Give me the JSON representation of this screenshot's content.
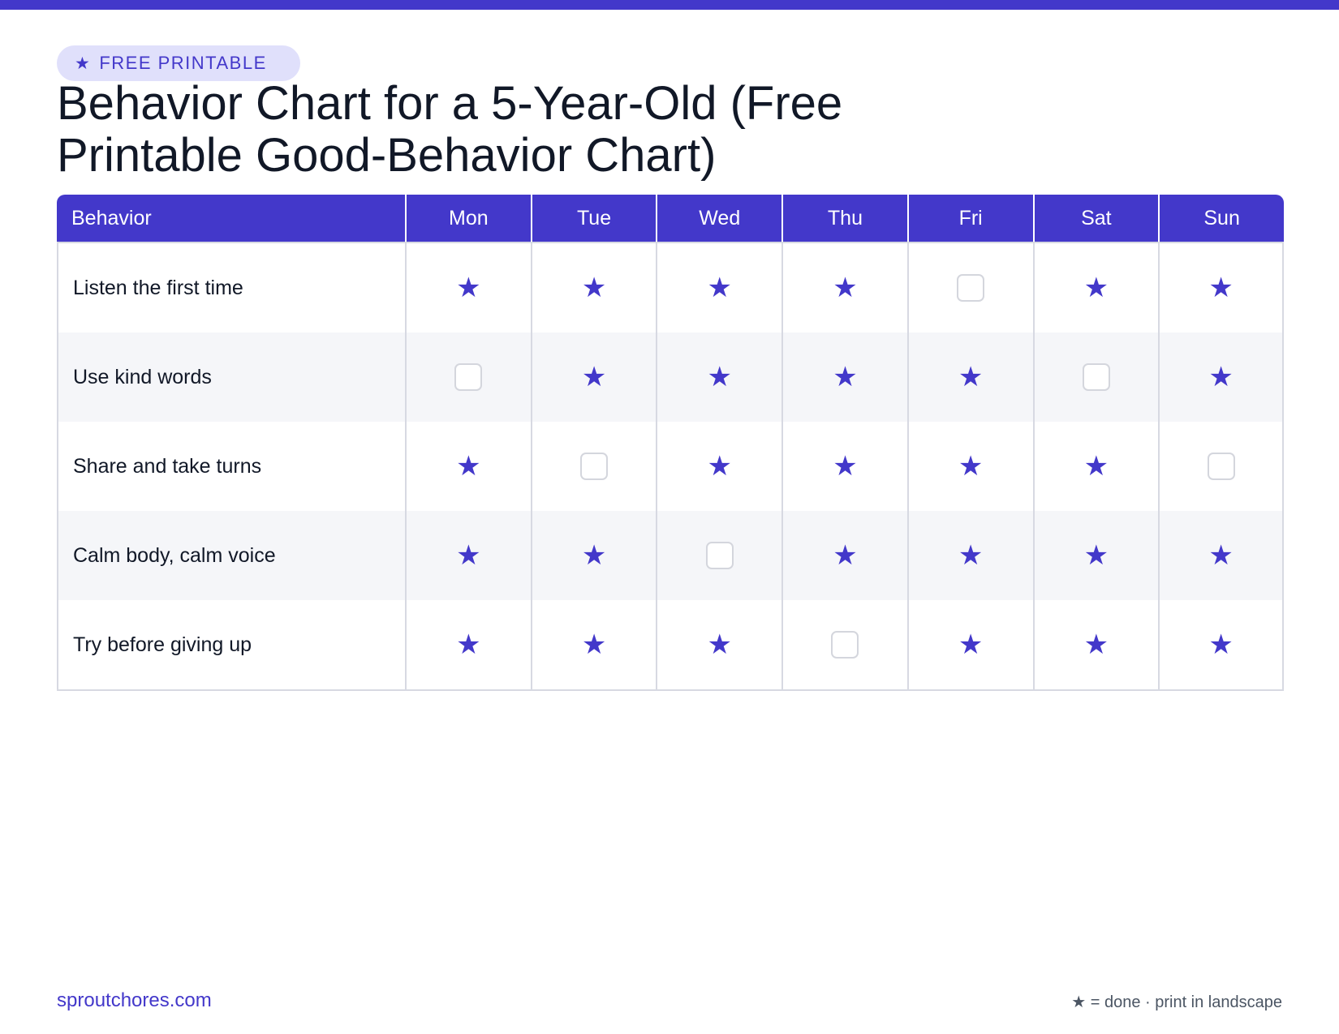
{
  "badge": {
    "icon": "star-icon",
    "icon_glyph": "★",
    "label": "FREE PRINTABLE"
  },
  "title": "Behavior Chart for a 5-Year-Old (Free Printable Good-Behavior Chart)",
  "table": {
    "header_behavior": "Behavior",
    "days": [
      "Mon",
      "Tue",
      "Wed",
      "Thu",
      "Fri",
      "Sat",
      "Sun"
    ],
    "rows": [
      {
        "behavior": "Listen the first time",
        "done": [
          true,
          true,
          true,
          true,
          false,
          true,
          true
        ]
      },
      {
        "behavior": "Use kind words",
        "done": [
          false,
          true,
          true,
          true,
          true,
          false,
          true
        ]
      },
      {
        "behavior": "Share and take turns",
        "done": [
          true,
          false,
          true,
          true,
          true,
          true,
          false
        ]
      },
      {
        "behavior": "Calm body, calm voice",
        "done": [
          true,
          true,
          false,
          true,
          true,
          true,
          true
        ]
      },
      {
        "behavior": "Try before giving up",
        "done": [
          true,
          true,
          true,
          false,
          true,
          true,
          true
        ]
      }
    ]
  },
  "footer": {
    "site": "sproutchores.com",
    "note": "★ = done · print in landscape"
  },
  "colors": {
    "accent": "#4338ca",
    "badge_bg": "#e0e0fb",
    "row_alt": "#f5f6f9",
    "border": "#d7d9e2"
  }
}
